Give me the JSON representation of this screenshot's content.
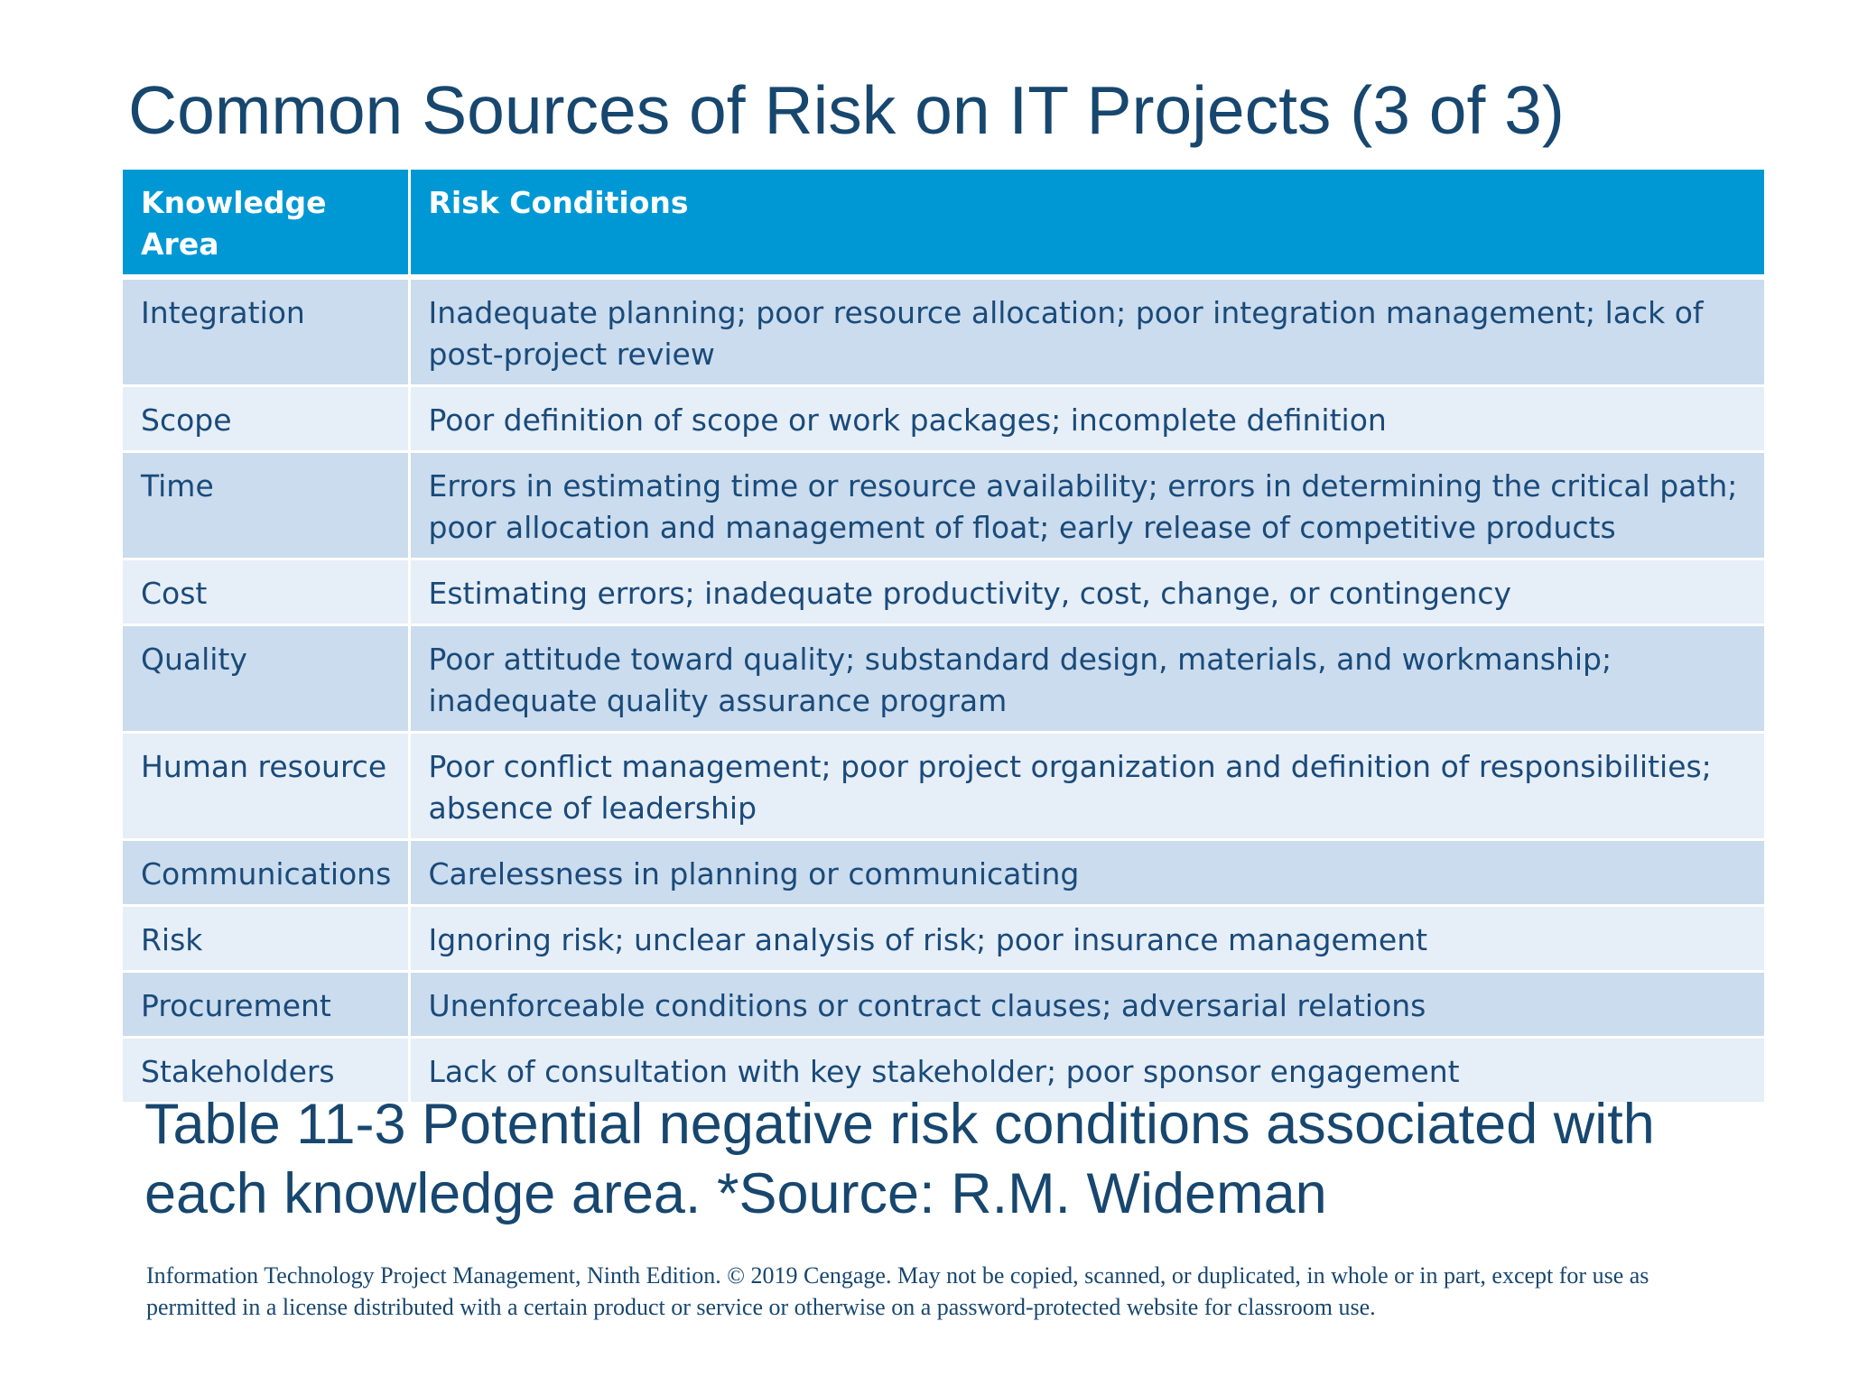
{
  "title": "Common Sources of Risk on IT Projects (3 of 3)",
  "table": {
    "headers": [
      "Knowledge Area",
      "Risk Conditions"
    ],
    "rows": [
      {
        "area": "Integration",
        "conditions": "Inadequate planning; poor resource allocation; poor integration management; lack of post-project review"
      },
      {
        "area": "Scope",
        "conditions": "Poor definition of scope or work packages; incomplete definition"
      },
      {
        "area": "Time",
        "conditions": "Errors in estimating time or resource availability; errors in determining the critical path; poor allocation and management of float; early release of competitive products"
      },
      {
        "area": "Cost",
        "conditions": "Estimating errors; inadequate productivity, cost, change, or contingency"
      },
      {
        "area": "Quality",
        "conditions": "Poor attitude toward quality; substandard design, materials, and workmanship; inadequate quality assurance program"
      },
      {
        "area": "Human resource",
        "conditions": "Poor conflict management; poor project organization and definition of responsibilities; absence of leadership"
      },
      {
        "area": "Communications",
        "conditions": "Carelessness in planning or communicating"
      },
      {
        "area": "Risk",
        "conditions": "Ignoring risk; unclear analysis of risk; poor insurance management"
      },
      {
        "area": "Procurement",
        "conditions": "Unenforceable conditions or contract clauses; adversarial relations"
      },
      {
        "area": "Stakeholders",
        "conditions": "Lack of consultation with key stakeholder; poor sponsor engagement"
      }
    ]
  },
  "caption": "Table 11-3 Potential negative risk conditions associated with each knowledge area. *Source: R.M. Wideman",
  "copyright": "Information Technology Project Management, Ninth Edition. © 2019 Cengage. May not be copied, scanned, or duplicated, in whole or in part, except for use as permitted in a license distributed with a certain product or service or otherwise on a password-protected website for classroom use.",
  "colors": {
    "header_background": "#0098d4",
    "row_dark": "#cadced",
    "row_light": "#e6eef7",
    "text": "#17476f"
  }
}
